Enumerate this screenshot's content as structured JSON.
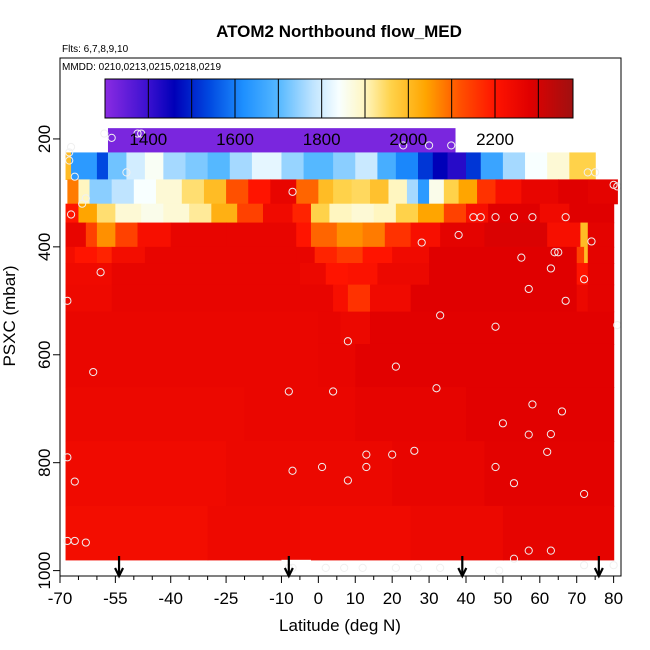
{
  "chart_data": {
    "type": "heatmap",
    "title": "ATOM2 Northbound flow_MED",
    "flights_label": "Flts: 6,7,8,9,10",
    "dates_label": "MMDD: 0210,0213,0215,0218,0219",
    "xlabel": "Latitude (deg N)",
    "ylabel": "PSXC (mbar)",
    "xlim": [
      -70,
      82
    ],
    "ylim": [
      1010,
      50
    ],
    "x_ticks": [
      -70,
      -55,
      -40,
      -25,
      -10,
      0,
      10,
      20,
      30,
      40,
      50,
      60,
      70,
      80
    ],
    "x_tick_labels": [
      "-70",
      "-55",
      "-40",
      "-25",
      "-10",
      "0",
      "10",
      "20",
      "30",
      "40",
      "50",
      "60",
      "70",
      "80"
    ],
    "x_minor_ticks": [
      -65,
      -60,
      -50,
      -45,
      -35,
      -30,
      -20,
      -15,
      -5,
      5,
      15,
      25,
      35,
      45,
      55,
      65,
      75
    ],
    "y_ticks": [
      200,
      400,
      600,
      800,
      1000
    ],
    "y_tick_labels": [
      "200",
      "400",
      "600",
      "800",
      "1000"
    ],
    "colorbar": {
      "min": 1300,
      "max": 2380,
      "ticks": [
        1400,
        1600,
        1800,
        2000,
        2200
      ],
      "tick_labels": [
        "1400",
        "1600",
        "1800",
        "2000",
        "2200"
      ],
      "stops": [
        {
          "value": 1300,
          "color": "#8a2be2"
        },
        {
          "value": 1400,
          "color": "#3a10d0"
        },
        {
          "value": 1460,
          "color": "#0000b8"
        },
        {
          "value": 1540,
          "color": "#0048e0"
        },
        {
          "value": 1620,
          "color": "#1e90ff"
        },
        {
          "value": 1700,
          "color": "#55b8ff"
        },
        {
          "value": 1780,
          "color": "#bfe4ff"
        },
        {
          "value": 1840,
          "color": "#f8ffff"
        },
        {
          "value": 1900,
          "color": "#fff6c0"
        },
        {
          "value": 1960,
          "color": "#ffd24a"
        },
        {
          "value": 2040,
          "color": "#ffa500"
        },
        {
          "value": 2120,
          "color": "#ff5000"
        },
        {
          "value": 2200,
          "color": "#ff1400"
        },
        {
          "value": 2280,
          "color": "#e00000"
        },
        {
          "value": 2380,
          "color": "#a01010"
        }
      ]
    },
    "arrows_latitude": [
      -54,
      -8,
      39,
      76
    ],
    "row_pressures": [
      180,
      225,
      275,
      320,
      355,
      400,
      430,
      470,
      520,
      580,
      660,
      760,
      880,
      980
    ],
    "row_segments": [
      [
        [
          -57,
          37,
          1320
        ]
      ],
      [
        [
          -68.5,
          -67,
          2000
        ],
        [
          -67,
          -60,
          1640
        ],
        [
          -60,
          -57,
          1540
        ],
        [
          -57,
          -52,
          1720
        ],
        [
          -52,
          -47,
          1800
        ],
        [
          -47,
          -42,
          1850
        ],
        [
          -42,
          -36,
          1760
        ],
        [
          -36,
          -30,
          1730
        ],
        [
          -30,
          -24,
          1700
        ],
        [
          -24,
          -18,
          1760
        ],
        [
          -18,
          -10,
          1820
        ],
        [
          -10,
          -4,
          1750
        ],
        [
          -4,
          4,
          1700
        ],
        [
          4,
          10,
          1740
        ],
        [
          10,
          16,
          1790
        ],
        [
          16,
          21,
          1680
        ],
        [
          21,
          27,
          1610
        ],
        [
          27,
          31,
          1520
        ],
        [
          31,
          35,
          1460
        ],
        [
          35,
          40,
          1420
        ],
        [
          40,
          44,
          1520
        ],
        [
          44,
          50,
          1660
        ],
        [
          50,
          56,
          1760
        ],
        [
          56,
          62,
          1840
        ],
        [
          62,
          68,
          1880
        ],
        [
          68,
          75,
          1960
        ]
      ],
      [
        [
          -68,
          -65,
          2080
        ],
        [
          -65,
          -62,
          1900
        ],
        [
          -62,
          -56,
          1740
        ],
        [
          -56,
          -50,
          1780
        ],
        [
          -50,
          -44,
          1840
        ],
        [
          -44,
          -37,
          1880
        ],
        [
          -37,
          -31,
          1940
        ],
        [
          -31,
          -25,
          2000
        ],
        [
          -25,
          -19,
          2120
        ],
        [
          -19,
          -13,
          2200
        ],
        [
          -13,
          -6,
          2260
        ],
        [
          -6,
          0,
          2100
        ],
        [
          0,
          4,
          2000
        ],
        [
          4,
          9,
          1960
        ],
        [
          9,
          14,
          1950
        ],
        [
          14,
          19,
          1990
        ],
        [
          19,
          24,
          1900
        ],
        [
          24,
          27,
          1760
        ],
        [
          27,
          30,
          1640
        ],
        [
          30,
          34,
          1860
        ],
        [
          34,
          38,
          1960
        ],
        [
          38,
          43,
          2040
        ],
        [
          43,
          48,
          2160
        ],
        [
          48,
          55,
          2220
        ],
        [
          55,
          65,
          2260
        ],
        [
          65,
          73,
          2280
        ],
        [
          73,
          81,
          2270
        ]
      ],
      [
        [
          -68.5,
          -65,
          2200
        ],
        [
          -65,
          -60,
          2040
        ],
        [
          -60,
          -55,
          1940
        ],
        [
          -55,
          -48,
          1880
        ],
        [
          -48,
          -42,
          1860
        ],
        [
          -42,
          -35,
          1880
        ],
        [
          -35,
          -29,
          1920
        ],
        [
          -29,
          -22,
          2020
        ],
        [
          -22,
          -15,
          2140
        ],
        [
          -15,
          -7,
          2240
        ],
        [
          -7,
          -2,
          2180
        ],
        [
          -2,
          3,
          1960
        ],
        [
          3,
          9,
          1900
        ],
        [
          9,
          15,
          1880
        ],
        [
          15,
          21,
          1900
        ],
        [
          21,
          27,
          1960
        ],
        [
          27,
          34,
          2040
        ],
        [
          34,
          40,
          2140
        ],
        [
          40,
          46,
          2220
        ],
        [
          46,
          60,
          2280
        ],
        [
          60,
          68,
          2240
        ],
        [
          68,
          73,
          2280
        ],
        [
          73,
          80,
          2280
        ]
      ],
      [
        [
          -68.5,
          -63,
          2260
        ],
        [
          -63,
          -60,
          2140
        ],
        [
          -60,
          -55,
          2060
        ],
        [
          -55,
          -49,
          2140
        ],
        [
          -49,
          -40,
          2220
        ],
        [
          -40,
          -25,
          2260
        ],
        [
          -25,
          -6,
          2260
        ],
        [
          -6,
          -2,
          2200
        ],
        [
          -2,
          5,
          2100
        ],
        [
          5,
          12,
          2060
        ],
        [
          12,
          18,
          2080
        ],
        [
          18,
          25,
          2160
        ],
        [
          25,
          33,
          2220
        ],
        [
          33,
          45,
          2270
        ],
        [
          45,
          62,
          2290
        ],
        [
          62,
          71,
          2220
        ],
        [
          71,
          73,
          2000
        ],
        [
          73,
          80,
          2270
        ]
      ],
      [
        [
          -68.5,
          -66,
          2230
        ],
        [
          -66,
          -60,
          2200
        ],
        [
          -60,
          -56,
          2180
        ],
        [
          -56,
          -47,
          2230
        ],
        [
          -47,
          -6,
          2260
        ],
        [
          -6,
          -1,
          2260
        ],
        [
          -1,
          5,
          2180
        ],
        [
          5,
          12,
          2150
        ],
        [
          12,
          20,
          2200
        ],
        [
          20,
          30,
          2240
        ],
        [
          30,
          70,
          2280
        ],
        [
          70,
          72,
          2140
        ],
        [
          72,
          73,
          2000
        ],
        [
          73,
          80,
          2270
        ]
      ],
      [
        [
          -68.5,
          -56,
          2240
        ],
        [
          -56,
          -5,
          2260
        ],
        [
          -5,
          2,
          2250
        ],
        [
          2,
          8,
          2200
        ],
        [
          8,
          16,
          2210
        ],
        [
          16,
          30,
          2250
        ],
        [
          30,
          70,
          2280
        ],
        [
          70,
          73,
          2200
        ],
        [
          73,
          80,
          2270
        ]
      ],
      [
        [
          -68.5,
          -56,
          2245
        ],
        [
          -56,
          -5,
          2260
        ],
        [
          -5,
          4,
          2260
        ],
        [
          4,
          8,
          2220
        ],
        [
          8,
          14,
          2160
        ],
        [
          14,
          25,
          2240
        ],
        [
          25,
          70,
          2280
        ],
        [
          70,
          73,
          2250
        ],
        [
          73,
          80,
          2270
        ]
      ],
      [
        [
          -68.5,
          0,
          2255
        ],
        [
          0,
          6,
          2260
        ],
        [
          6,
          14,
          2250
        ],
        [
          14,
          80,
          2275
        ]
      ],
      [
        [
          -68.5,
          0,
          2255
        ],
        [
          0,
          10,
          2260
        ],
        [
          10,
          80,
          2275
        ]
      ],
      [
        [
          -68.5,
          -20,
          2250
        ],
        [
          -20,
          10,
          2255
        ],
        [
          10,
          40,
          2265
        ],
        [
          40,
          80,
          2275
        ]
      ],
      [
        [
          -68.5,
          -25,
          2240
        ],
        [
          -25,
          0,
          2250
        ],
        [
          0,
          20,
          2250
        ],
        [
          20,
          45,
          2260
        ],
        [
          45,
          80,
          2272
        ]
      ],
      [
        [
          -68.5,
          -30,
          2230
        ],
        [
          -30,
          -5,
          2245
        ],
        [
          -5,
          25,
          2240
        ],
        [
          25,
          50,
          2250
        ],
        [
          50,
          80,
          2265
        ]
      ],
      [
        [
          -68.5,
          -10,
          2230
        ],
        [
          -10,
          30,
          2235
        ],
        [
          30,
          55,
          2245
        ],
        [
          55,
          80,
          2260
        ]
      ]
    ],
    "row_valid_ranges": [
      null,
      null,
      null,
      null,
      null,
      null,
      null,
      null,
      null,
      null,
      null,
      null,
      null,
      [
        [
          -68.5,
          -10
        ],
        [
          -2,
          80
        ]
      ]
    ],
    "points": [
      [
        -58,
        190
      ],
      [
        -56,
        198
      ],
      [
        -49,
        190
      ],
      [
        -48,
        190
      ],
      [
        -67,
        215
      ],
      [
        -67.5,
        225
      ],
      [
        -67.5,
        240
      ],
      [
        -52,
        262
      ],
      [
        23,
        212
      ],
      [
        30,
        212
      ],
      [
        36,
        212
      ],
      [
        -7,
        298
      ],
      [
        -67,
        340
      ],
      [
        -64,
        320
      ],
      [
        -63,
        310
      ],
      [
        -66,
        270
      ],
      [
        73,
        262
      ],
      [
        75,
        262
      ],
      [
        80,
        285
      ],
      [
        81,
        288
      ],
      [
        48,
        345
      ],
      [
        44,
        345
      ],
      [
        42,
        345
      ],
      [
        53,
        345
      ],
      [
        58,
        345
      ],
      [
        67,
        345
      ],
      [
        38,
        378
      ],
      [
        28,
        392
      ],
      [
        55,
        420
      ],
      [
        65,
        410
      ],
      [
        64,
        410
      ],
      [
        74,
        390
      ],
      [
        -59,
        447
      ],
      [
        63,
        440
      ],
      [
        72,
        460
      ],
      [
        57,
        478
      ],
      [
        -68,
        500
      ],
      [
        67,
        500
      ],
      [
        81,
        545
      ],
      [
        33,
        527
      ],
      [
        48,
        548
      ],
      [
        8,
        575
      ],
      [
        -61,
        632
      ],
      [
        21,
        622
      ],
      [
        -8,
        668
      ],
      [
        4,
        668
      ],
      [
        32,
        662
      ],
      [
        58,
        692
      ],
      [
        66,
        705
      ],
      [
        50,
        727
      ],
      [
        57,
        748
      ],
      [
        63,
        747
      ],
      [
        -68,
        790
      ],
      [
        13,
        785
      ],
      [
        20,
        785
      ],
      [
        26,
        778
      ],
      [
        62,
        780
      ],
      [
        -7,
        815
      ],
      [
        1,
        808
      ],
      [
        13,
        808
      ],
      [
        48,
        808
      ],
      [
        -66,
        835
      ],
      [
        8,
        833
      ],
      [
        53,
        838
      ],
      [
        72,
        858
      ],
      [
        -68,
        945
      ],
      [
        -66,
        945
      ],
      [
        -63,
        948
      ],
      [
        57,
        963
      ],
      [
        63,
        963
      ],
      [
        -8,
        995
      ],
      [
        -7,
        995
      ],
      [
        2,
        995
      ],
      [
        7,
        995
      ],
      [
        12,
        995
      ],
      [
        21,
        995
      ],
      [
        27,
        995
      ],
      [
        33,
        995
      ],
      [
        49,
        1000
      ],
      [
        53,
        978
      ],
      [
        72,
        990
      ],
      [
        80,
        990
      ]
    ]
  }
}
